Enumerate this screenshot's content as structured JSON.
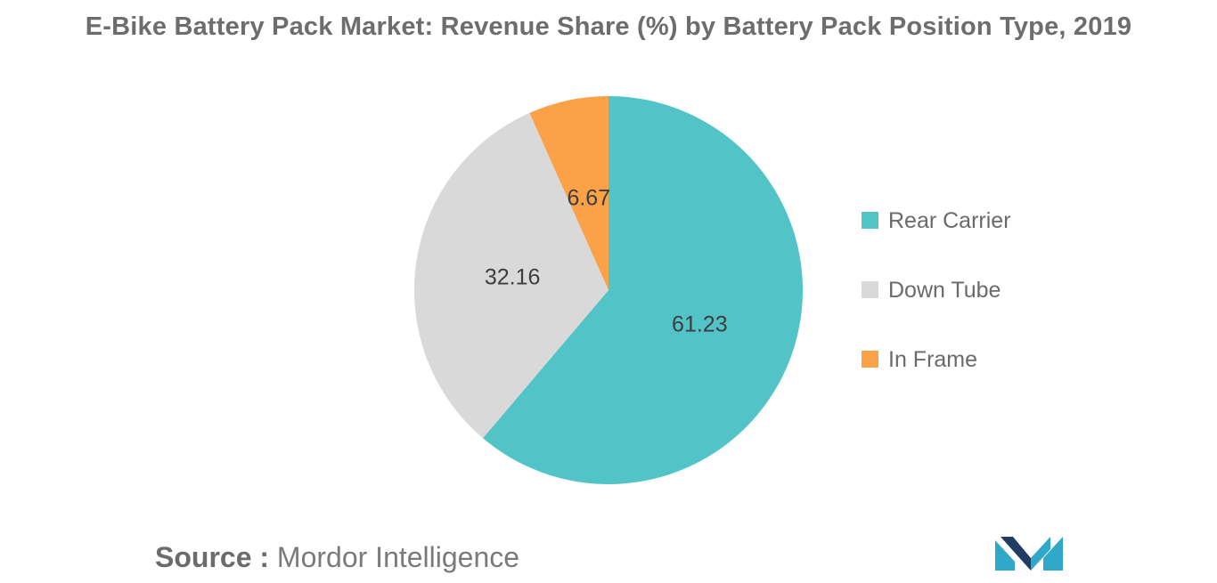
{
  "chart_data": {
    "type": "pie",
    "title": "E-Bike Battery Pack Market: Revenue Share (%) by Battery Pack Position Type, 2019",
    "categories": [
      "Rear Carrier",
      "Down Tube",
      "In Frame"
    ],
    "values": [
      61.23,
      32.16,
      6.67
    ],
    "labels": [
      "61.23",
      "32.16",
      "6.67"
    ],
    "colors": [
      "#52c4c8",
      "#d9d9d9",
      "#fba147"
    ],
    "start_angle_deg": 0,
    "direction": "clockwise",
    "legend_position": "right"
  },
  "footer": {
    "source_key": "Source :",
    "source_value": "Mordor Intelligence"
  },
  "logo": {
    "colors": [
      "#1f3d63",
      "#2fa8c9"
    ]
  }
}
